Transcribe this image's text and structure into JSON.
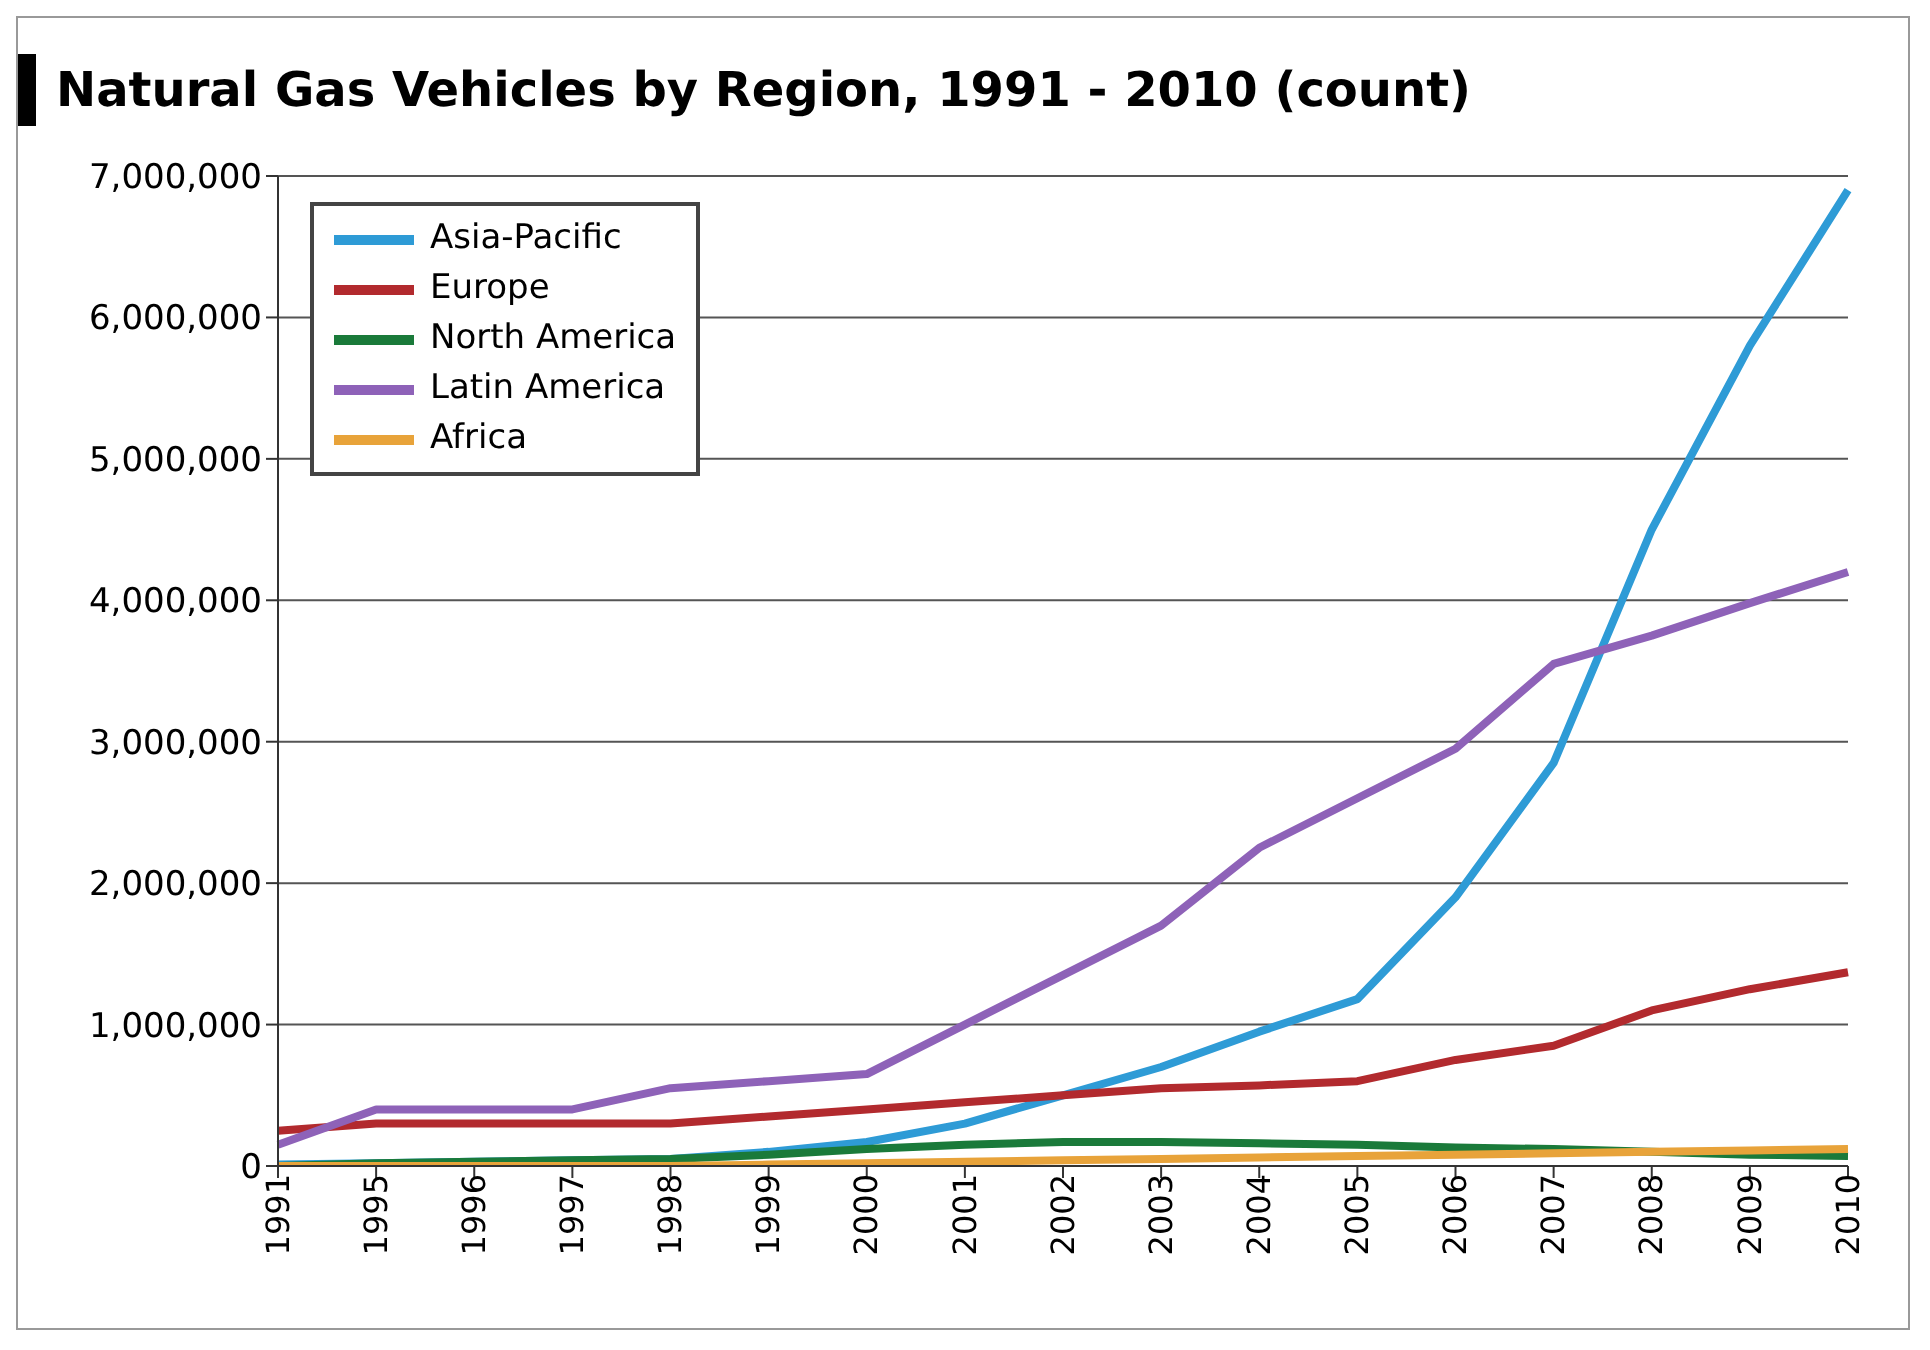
{
  "chart_data": {
    "type": "line",
    "title": "Natural Gas Vehicles by Region, 1991 - 2010 (count)",
    "categories": [
      "1991",
      "1995",
      "1996",
      "1997",
      "1998",
      "1999",
      "2000",
      "2001",
      "2002",
      "2003",
      "2004",
      "2005",
      "2006",
      "2007",
      "2008",
      "2009",
      "2010"
    ],
    "series": [
      {
        "name": "Asia-Pacific",
        "color": "#2e9bd6",
        "values": [
          10000,
          20000,
          30000,
          40000,
          50000,
          100000,
          170000,
          300000,
          500000,
          700000,
          950000,
          1180000,
          1900000,
          2850000,
          4500000,
          5800000,
          6900000
        ]
      },
      {
        "name": "Europe",
        "color": "#b22a2e",
        "values": [
          250000,
          300000,
          300000,
          300000,
          300000,
          350000,
          400000,
          450000,
          500000,
          550000,
          570000,
          600000,
          750000,
          850000,
          1100000,
          1250000,
          1370000
        ]
      },
      {
        "name": "North America",
        "color": "#1a7a3a",
        "values": [
          0,
          20000,
          30000,
          40000,
          50000,
          80000,
          120000,
          150000,
          170000,
          170000,
          160000,
          150000,
          130000,
          120000,
          100000,
          80000,
          70000
        ]
      },
      {
        "name": "Latin America",
        "color": "#8e62b8",
        "values": [
          150000,
          400000,
          400000,
          400000,
          550000,
          600000,
          650000,
          1000000,
          1350000,
          1700000,
          2250000,
          2600000,
          2950000,
          3550000,
          3750000,
          3980000,
          4200000
        ]
      },
      {
        "name": "Africa",
        "color": "#e8a33a",
        "values": [
          0,
          0,
          0,
          0,
          0,
          10000,
          20000,
          30000,
          40000,
          50000,
          60000,
          70000,
          80000,
          90000,
          100000,
          110000,
          120000
        ]
      }
    ],
    "ylim": [
      0,
      7000000
    ],
    "yticks": [
      0,
      {
        "value": 1000000,
        "label": "1,000,000"
      },
      {
        "value": 2000000,
        "label": "2,000,000"
      },
      {
        "value": 3000000,
        "label": "3,000,000"
      },
      {
        "value": 4000000,
        "label": "4,000,000"
      },
      {
        "value": 5000000,
        "label": "5,000,000"
      },
      {
        "value": 6000000,
        "label": "6,000,000"
      },
      {
        "value": 7000000,
        "label": "7,000,000"
      }
    ],
    "grid": "y",
    "legend": "top left",
    "marker": "none",
    "line_style": "solid"
  }
}
